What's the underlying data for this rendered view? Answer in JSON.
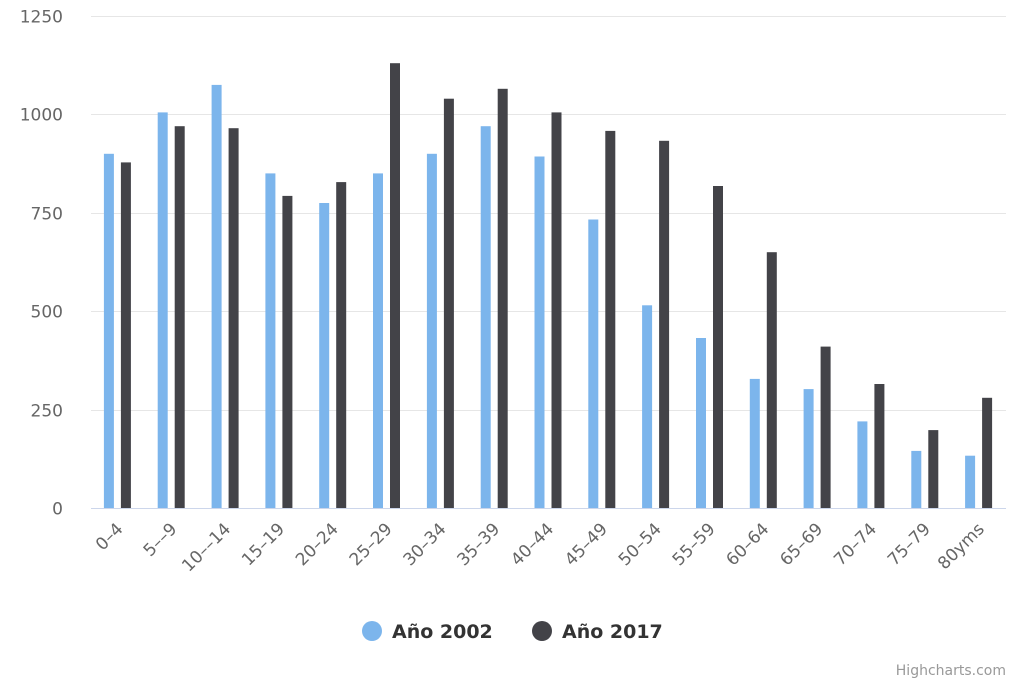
{
  "chart_data": {
    "type": "bar",
    "title": "",
    "xlabel": "",
    "ylabel": "",
    "categories": [
      "0–4",
      "5––9",
      "10––14",
      "15–19",
      "20–24",
      "25–29",
      "30–34",
      "35–39",
      "40–44",
      "45–49",
      "50–54",
      "55–59",
      "60–64",
      "65–69",
      "70–74",
      "75–79",
      "80yms"
    ],
    "series": [
      {
        "name": "Año 2002",
        "color": "#7cb5ec",
        "values": [
          900,
          1005,
          1075,
          850,
          775,
          850,
          900,
          970,
          893,
          733,
          515,
          432,
          328,
          302,
          220,
          145,
          133
        ]
      },
      {
        "name": "Año 2017",
        "color": "#434348",
        "values": [
          878,
          970,
          965,
          793,
          828,
          1130,
          1040,
          1065,
          1005,
          958,
          933,
          818,
          650,
          410,
          315,
          198,
          280
        ]
      }
    ],
    "ylim": [
      0,
      1250
    ],
    "yticks": [
      0,
      250,
      500,
      750,
      1000,
      1250
    ],
    "grid": true,
    "legend_position": "bottom-center"
  },
  "credits": "Highcharts.com"
}
